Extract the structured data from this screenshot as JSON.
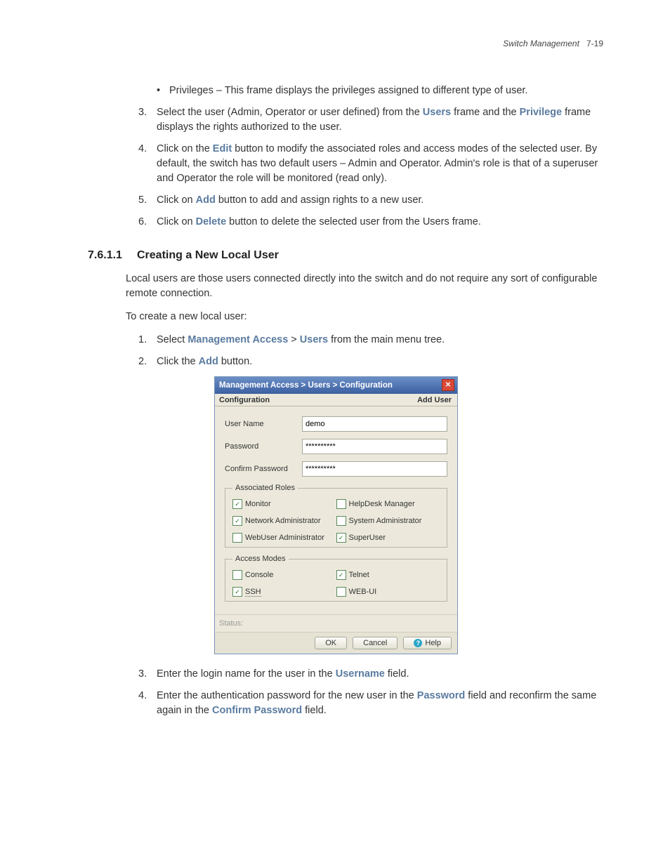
{
  "header": {
    "section": "Switch Management",
    "page": "7-19"
  },
  "bullet": "Privileges – This frame displays the privileges assigned to different type of user.",
  "toplist": {
    "i3a": "Select the user (Admin, Operator or user defined) from the ",
    "i3b": " frame and the ",
    "i3c": " frame displays the rights authorized to the user.",
    "users": "Users",
    "privilege": "Privilege",
    "i4a": "Click on the ",
    "i4b": " button to modify the associated roles and access modes of the selected user. By default, the switch has two default users – Admin and Operator. Admin's role is that of a superuser and Operator the role will be monitored (read only).",
    "edit": "Edit",
    "i5a": "Click on ",
    "i5b": " button to add and assign rights to a new user.",
    "add": "Add",
    "i6a": "Click on ",
    "i6b": " button to delete the selected user from the Users frame.",
    "delete": "Delete"
  },
  "section": {
    "num": "7.6.1.1",
    "title": "Creating a New Local User"
  },
  "para1": "Local users are those users connected directly into the switch and do not require any sort of configurable remote connection.",
  "para2": "To create a new local user:",
  "steps": {
    "s1a": "Select ",
    "s1b": " > ",
    "s1c": " from the main menu tree.",
    "mgmt": "Management Access",
    "users": "Users",
    "s2a": "Click the ",
    "s2b": " button.",
    "add": "Add",
    "s3a": "Enter the login name for the user in the ",
    "s3b": " field.",
    "username": "Username",
    "s4a": "Enter the authentication password for the new user in the ",
    "s4b": " field and reconfirm the same again in the ",
    "s4c": " field.",
    "password": "Password",
    "confirm": "Confirm Password"
  },
  "dialog": {
    "title": "Management Access > Users > Configuration",
    "tab_left": "Configuration",
    "tab_right": "Add User",
    "labels": {
      "user": "User Name",
      "pass": "Password",
      "confirm": "Confirm Password"
    },
    "values": {
      "user": "demo",
      "pass": "**********",
      "confirm": "**********"
    },
    "roles_legend": "Associated Roles",
    "roles": {
      "monitor": "Monitor",
      "helpdesk": "HelpDesk Manager",
      "netadmin": "Network Administrator",
      "sysadmin": "System Administrator",
      "webuser": "WebUser Administrator",
      "superuser": "SuperUser"
    },
    "modes_legend": "Access Modes",
    "modes": {
      "console": "Console",
      "telnet": "Telnet",
      "ssh": "SSH",
      "webui": "WEB-UI"
    },
    "status": "Status:",
    "buttons": {
      "ok": "OK",
      "cancel": "Cancel",
      "help": "Help"
    }
  }
}
